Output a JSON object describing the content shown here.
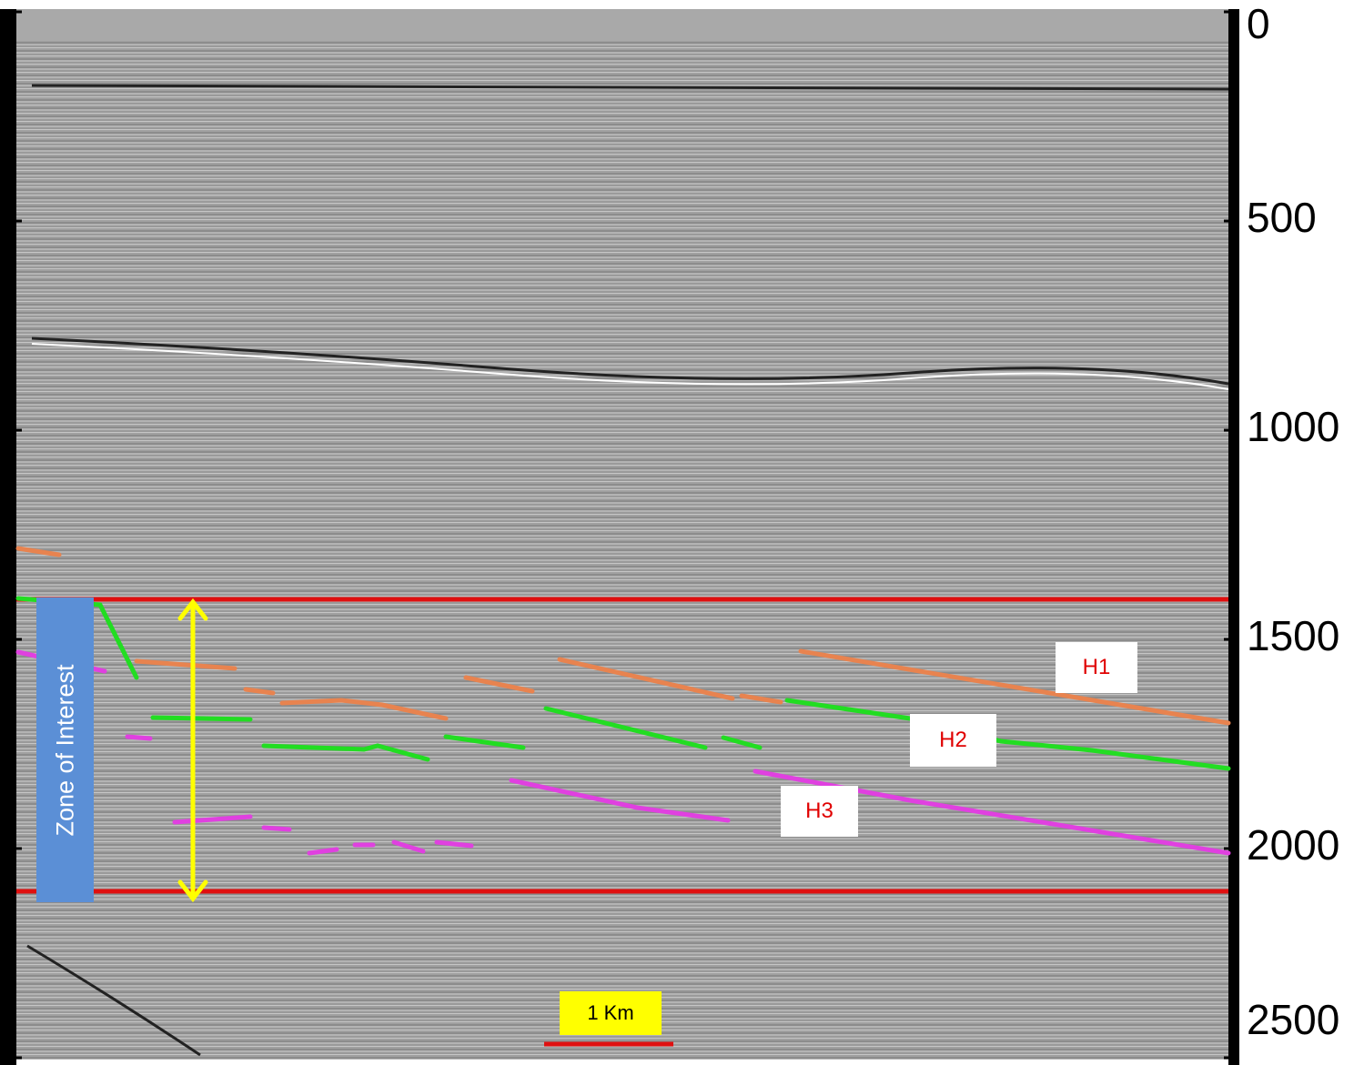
{
  "axis": {
    "ticks": [
      0,
      500,
      1000,
      1500,
      2000,
      2500
    ]
  },
  "zone_label": "Zone of Interest",
  "horizons": [
    "H1",
    "H2",
    "H3"
  ],
  "scale_bar": "1 Km"
}
